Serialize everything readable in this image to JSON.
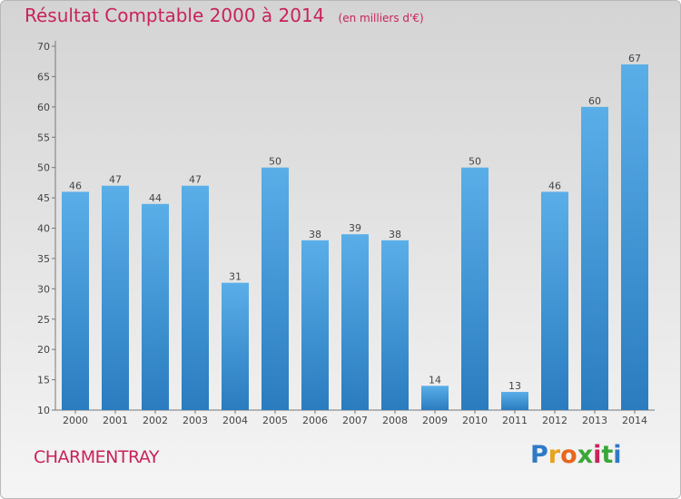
{
  "chart_data": {
    "type": "bar",
    "title": "Résultat Comptable 2000 à 2014",
    "subtitle": "(en milliers d'€)",
    "categories": [
      "2000",
      "2001",
      "2002",
      "2003",
      "2004",
      "2005",
      "2006",
      "2007",
      "2008",
      "2009",
      "2010",
      "2011",
      "2012",
      "2013",
      "2014"
    ],
    "values": [
      46,
      47,
      44,
      47,
      31,
      50,
      38,
      39,
      38,
      14,
      50,
      13,
      46,
      60,
      67
    ],
    "ylim": [
      10,
      70
    ],
    "yticks": [
      10,
      15,
      20,
      25,
      30,
      35,
      40,
      45,
      50,
      55,
      60,
      65,
      70
    ],
    "xlabel": "",
    "ylabel": "",
    "grid": false,
    "bar_color_top": "#5aaee8",
    "bar_color_bottom": "#2a7cbf"
  },
  "commune": "CHARMENTRAY",
  "logo": {
    "letters": [
      "P",
      "r",
      "o",
      "x",
      "i",
      "t",
      "i"
    ],
    "colors": [
      "#2f7ac6",
      "#e8a21c",
      "#e8661c",
      "#3aa63a",
      "#c8235a",
      "#3aa63a",
      "#2f7ac6"
    ]
  }
}
